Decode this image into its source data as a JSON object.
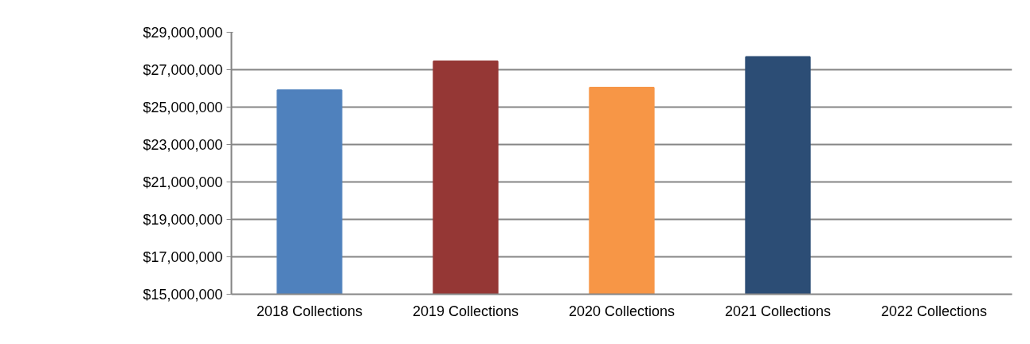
{
  "chart_data": {
    "type": "bar",
    "categories": [
      "2018 Collections",
      "2019 Collections",
      "2020 Collections",
      "2021 Collections",
      "2022 Collections"
    ],
    "values": [
      25900000,
      27450000,
      26040000,
      27680000,
      null
    ],
    "colors": [
      "#4f81bd",
      "#953735",
      "#f79646",
      "#2c4d75",
      "#7030a0"
    ],
    "ylim": [
      15000000,
      29000000
    ],
    "yticks": [
      {
        "value": 15000000,
        "label": "$15,000,000"
      },
      {
        "value": 17000000,
        "label": "$17,000,000"
      },
      {
        "value": 19000000,
        "label": "$19,000,000"
      },
      {
        "value": 21000000,
        "label": "$21,000,000"
      },
      {
        "value": 23000000,
        "label": "$23,000,000"
      },
      {
        "value": 25000000,
        "label": "$25,000,000"
      },
      {
        "value": 27000000,
        "label": "$27,000,000"
      },
      {
        "value": 29000000,
        "label": "$29,000,000"
      }
    ],
    "grid": "y"
  }
}
